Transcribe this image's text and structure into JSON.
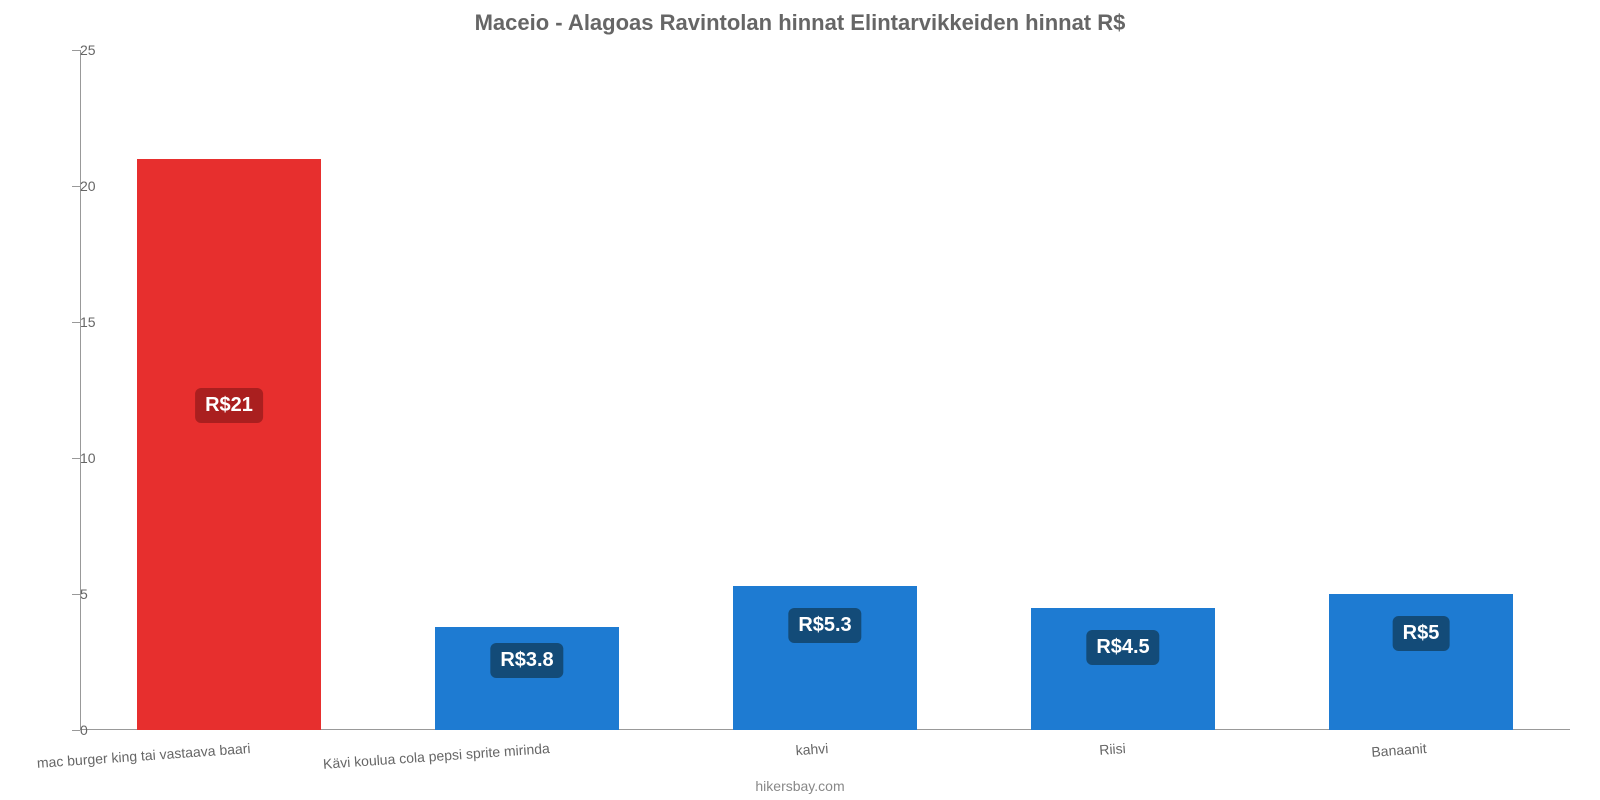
{
  "chart": {
    "type": "bar",
    "title": "Maceio - Alagoas Ravintolan hinnat Elintarvikkeiden hinnat R$",
    "title_color": "#666666",
    "title_fontsize": 22,
    "footer": "hikersbay.com",
    "footer_color": "#888888",
    "background_color": "#ffffff",
    "axis_color": "#999999",
    "label_color": "#666666",
    "ylim": [
      0,
      25
    ],
    "ytick_step": 5,
    "yticks": [
      0,
      5,
      10,
      15,
      20,
      25
    ],
    "bar_width_ratio": 0.62,
    "categories": [
      "mac burger king tai vastaava baari",
      "Kävi koulua cola pepsi sprite mirinda",
      "kahvi",
      "Riisi",
      "Banaanit"
    ],
    "values": [
      21,
      3.8,
      5.3,
      4.5,
      5
    ],
    "value_labels": [
      "R$21",
      "R$3.8",
      "R$5.3",
      "R$4.5",
      "R$5"
    ],
    "bar_colors": [
      "#e72f2e",
      "#1e7bd2",
      "#1e7bd2",
      "#1e7bd2",
      "#1e7bd2"
    ],
    "badge_colors": [
      "#aa1f1f",
      "#134b78",
      "#134b78",
      "#134b78",
      "#134b78"
    ],
    "badge_fontsize": 20,
    "xlabel_fontsize": 14,
    "xlabel_rotate_deg": -4
  }
}
